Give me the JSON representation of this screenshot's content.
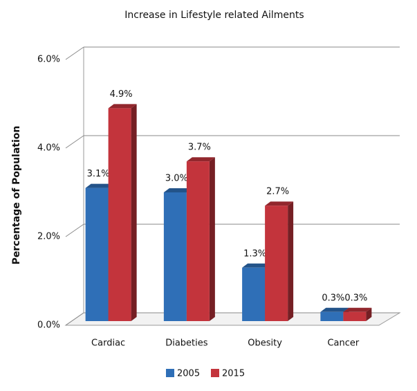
{
  "chart_data": {
    "type": "bar3d",
    "title": "Increase in Lifestyle related Ailments",
    "y_label": "Percentage of Population",
    "categories": [
      "Cardiac",
      "Diabeties",
      "Obesity",
      "Cancer"
    ],
    "series": [
      {
        "name": "2005",
        "color": "#2f6fb7",
        "values": [
          3.1,
          3.0,
          1.3,
          0.3
        ],
        "value_labels": [
          "3.1%",
          "3.0%",
          "1.3%",
          "0.3%"
        ]
      },
      {
        "name": "2015",
        "color": "#c3343c",
        "values": [
          4.9,
          3.7,
          2.7,
          0.3
        ],
        "value_labels": [
          "4.9%",
          "3.7%",
          "2.7%",
          "0.3%"
        ]
      }
    ],
    "ylim": [
      0,
      6
    ],
    "yticks": [
      {
        "value": 0,
        "label": "0.0%"
      },
      {
        "value": 2,
        "label": "2.0%"
      },
      {
        "value": 4,
        "label": "4.0%"
      },
      {
        "value": 6,
        "label": "6.0%"
      }
    ],
    "grid": true,
    "legend": "bottom"
  }
}
